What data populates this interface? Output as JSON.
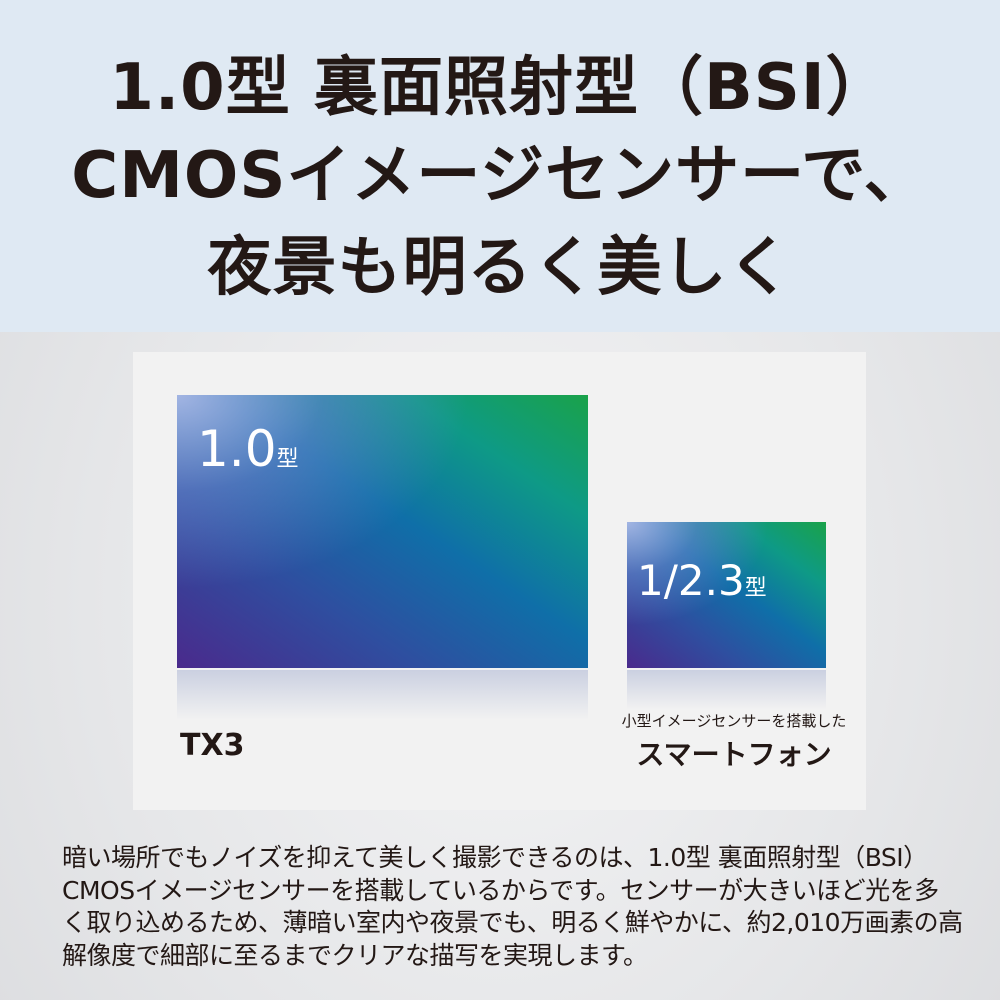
{
  "headline": [
    "1.0型 裏面照射型（BSI）",
    "CMOSイメージセンサーで、",
    "夜景も明るく美しく"
  ],
  "large_sensor": {
    "size": "1.0",
    "unit": "型",
    "name": "TX3"
  },
  "small_sensor": {
    "size": "1/2.3",
    "unit": "型",
    "caption": "小型イメージセンサーを搭載した",
    "name": "スマートフォン"
  },
  "body": [
    "暗い場所でもノイズを抑えて美しく撮影できるのは、1.0型 裏面照射型（BSI）",
    "CMOSイメージセンサーを搭載しているからです。センサーが大きいほど光を多",
    "く取り込めるため、薄暗い室内や夜景でも、明るく鮮やかに、約2,010万画素の高",
    "解像度で細部に至るまでクリアな描写を実現します。"
  ],
  "colors": {
    "top_band": "#dfe9f3",
    "text": "#231815",
    "sensor_green": "#1aa24a",
    "sensor_purple": "#4a2a8c"
  }
}
